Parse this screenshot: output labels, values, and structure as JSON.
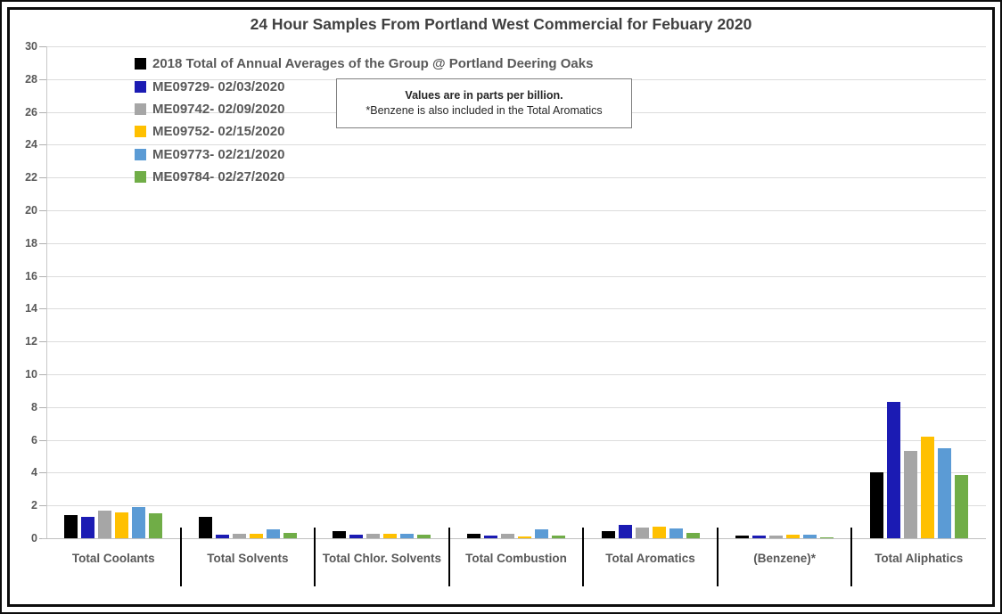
{
  "annotation": {
    "line1": "Values are in parts per billion.",
    "line2": "*Benzene is also included in the Total Aromatics"
  },
  "chart_data": {
    "type": "bar",
    "title": "24 Hour Samples From Portland West Commercial for Febuary 2020",
    "units": "parts per billion",
    "categories": [
      "Total Coolants",
      "Total Solvents",
      "Total Chlor. Solvents",
      "Total Combustion",
      "Total Aromatics",
      "(Benzene)*",
      "Total Aliphatics"
    ],
    "series": [
      {
        "name": "2018 Total of Annual Averages of the Group @ Portland Deering Oaks",
        "color": "#000000",
        "values": [
          1.4,
          1.3,
          0.45,
          0.25,
          0.45,
          0.15,
          4.0
        ]
      },
      {
        "name": "ME09729- 02/03/2020",
        "color": "#1b1bb3",
        "values": [
          1.3,
          0.2,
          0.2,
          0.15,
          0.8,
          0.17,
          8.3
        ]
      },
      {
        "name": "ME09742- 02/09/2020",
        "color": "#a6a6a6",
        "values": [
          1.7,
          0.25,
          0.25,
          0.25,
          0.65,
          0.15,
          5.3
        ]
      },
      {
        "name": "ME09752- 02/15/2020",
        "color": "#ffc000",
        "values": [
          1.6,
          0.25,
          0.27,
          0.12,
          0.7,
          0.22,
          6.2
        ]
      },
      {
        "name": "ME09773- 02/21/2020",
        "color": "#5b9bd5",
        "values": [
          1.9,
          0.55,
          0.25,
          0.55,
          0.62,
          0.2,
          5.5
        ]
      },
      {
        "name": "ME09784- 02/27/2020",
        "color": "#70ad47",
        "values": [
          1.5,
          0.35,
          0.2,
          0.18,
          0.3,
          0.05,
          3.85
        ]
      }
    ],
    "ylim": [
      0,
      30
    ],
    "yticks": [
      0,
      2,
      4,
      6,
      8,
      10,
      12,
      14,
      16,
      18,
      20,
      22,
      24,
      26,
      28,
      30
    ],
    "grid": true,
    "legend_position": "top-left-inside",
    "colors": {
      "grid": "#dcdcdc",
      "axis": "#c0c0c0",
      "tick_text": "#595959",
      "title_text": "#404040",
      "category_divider": "#000000",
      "frame_border": "#0d0d0d"
    }
  }
}
